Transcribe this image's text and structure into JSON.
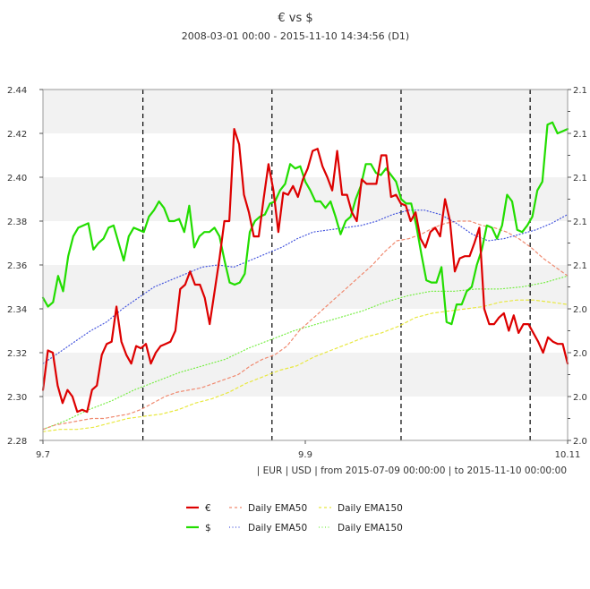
{
  "chart_data": {
    "type": "line",
    "title": "€ vs $",
    "subtitle": "2008-03-01 00:00 - 2015-11-10 14:34:56 (D1)",
    "info": "| EUR | USD | from 2015-07-09 00:00:00 | to 2015-11-10 00:00:00",
    "x_ticks": [
      "9.7",
      "9.9",
      "10.11"
    ],
    "x_range": [
      0,
      126
    ],
    "ylim_left": [
      2.28,
      2.44
    ],
    "y_ticks_left": [
      "2.28",
      "2.30",
      "2.32",
      "2.34",
      "2.36",
      "2.38",
      "2.40",
      "2.42",
      "2.44"
    ],
    "ylim_right": [
      2.0,
      2.16
    ],
    "y_ticks_right": [
      "2.0",
      "2.0",
      "2.0",
      "2.0",
      "2.1",
      "2.1",
      "2.1",
      "2.1",
      "2.1"
    ],
    "vlines_x": [
      24,
      55,
      86,
      117
    ],
    "grid": "horizontal bands",
    "legend_position": "bottom",
    "series": [
      {
        "name": "€",
        "axis": "left",
        "style": "solid",
        "color": "#dd0000",
        "values": [
          2.303,
          2.321,
          2.32,
          2.305,
          2.297,
          2.303,
          2.3,
          2.293,
          2.294,
          2.293,
          2.303,
          2.305,
          2.319,
          2.324,
          2.325,
          2.341,
          2.325,
          2.319,
          2.315,
          2.323,
          2.322,
          2.324,
          2.315,
          2.32,
          2.323,
          2.324,
          2.325,
          2.33,
          2.349,
          2.351,
          2.357,
          2.351,
          2.351,
          2.345,
          2.333,
          2.348,
          2.363,
          2.38,
          2.38,
          2.422,
          2.415,
          2.392,
          2.384,
          2.373,
          2.373,
          2.39,
          2.406,
          2.394,
          2.375,
          2.393,
          2.392,
          2.396,
          2.391,
          2.399,
          2.404,
          2.412,
          2.413,
          2.405,
          2.4,
          2.394,
          2.412,
          2.392,
          2.392,
          2.384,
          2.38,
          2.399,
          2.397,
          2.397,
          2.397,
          2.41,
          2.41,
          2.391,
          2.392,
          2.388,
          2.387,
          2.38,
          2.384,
          2.372,
          2.368,
          2.375,
          2.377,
          2.373,
          2.39,
          2.38,
          2.357,
          2.363,
          2.364,
          2.364,
          2.37,
          2.377,
          2.34,
          2.333,
          2.333,
          2.336,
          2.338,
          2.33,
          2.337,
          2.329,
          2.333,
          2.333,
          2.329,
          2.325,
          2.32,
          2.327,
          2.325,
          2.324,
          2.324,
          2.315
        ]
      },
      {
        "name": "$",
        "axis": "left",
        "style": "solid",
        "color": "#22dd00",
        "values": [
          2.345,
          2.341,
          2.343,
          2.355,
          2.348,
          2.364,
          2.373,
          2.377,
          2.378,
          2.379,
          2.367,
          2.37,
          2.372,
          2.377,
          2.378,
          2.37,
          2.362,
          2.373,
          2.377,
          2.376,
          2.375,
          2.382,
          2.385,
          2.389,
          2.386,
          2.38,
          2.38,
          2.381,
          2.375,
          2.387,
          2.368,
          2.373,
          2.375,
          2.375,
          2.377,
          2.373,
          2.362,
          2.352,
          2.351,
          2.352,
          2.356,
          2.375,
          2.38,
          2.382,
          2.383,
          2.388,
          2.389,
          2.394,
          2.397,
          2.406,
          2.404,
          2.405,
          2.398,
          2.394,
          2.389,
          2.389,
          2.386,
          2.389,
          2.382,
          2.374,
          2.38,
          2.382,
          2.39,
          2.396,
          2.406,
          2.406,
          2.402,
          2.401,
          2.404,
          2.401,
          2.398,
          2.39,
          2.388,
          2.388,
          2.378,
          2.365,
          2.353,
          2.352,
          2.352,
          2.359,
          2.334,
          2.333,
          2.342,
          2.342,
          2.348,
          2.35,
          2.36,
          2.367,
          2.378,
          2.377,
          2.372,
          2.378,
          2.392,
          2.389,
          2.376,
          2.375,
          2.378,
          2.382,
          2.394,
          2.398,
          2.424,
          2.425,
          2.42,
          2.421,
          2.422
        ]
      },
      {
        "name": "Daily EMA50",
        "axis": "left",
        "style": "dashed",
        "color": "#f08a70",
        "values": [
          2.285,
          2.287,
          2.288,
          2.289,
          2.29,
          2.29,
          2.291,
          2.292,
          2.294,
          2.297,
          2.3,
          2.302,
          2.303,
          2.304,
          2.306,
          2.308,
          2.31,
          2.314,
          2.317,
          2.319,
          2.323,
          2.33,
          2.335,
          2.34,
          2.345,
          2.35,
          2.355,
          2.36,
          2.366,
          2.371,
          2.372,
          2.374,
          2.377,
          2.379,
          2.38,
          2.38,
          2.378,
          2.377,
          2.375,
          2.372,
          2.368,
          2.363,
          2.359,
          2.355
        ]
      },
      {
        "name": "Daily EMA50",
        "axis": "left",
        "style": "dotted",
        "color": "#4455dd",
        "values": [
          2.315,
          2.32,
          2.325,
          2.33,
          2.334,
          2.34,
          2.345,
          2.35,
          2.353,
          2.356,
          2.359,
          2.36,
          2.359,
          2.362,
          2.365,
          2.368,
          2.372,
          2.375,
          2.376,
          2.377,
          2.378,
          2.38,
          2.383,
          2.385,
          2.385,
          2.383,
          2.379,
          2.374,
          2.371,
          2.372,
          2.374,
          2.376,
          2.379,
          2.383
        ]
      },
      {
        "name": "Daily EMA150",
        "axis": "left",
        "style": "dashed",
        "color": "#e8e840",
        "values": [
          2.284,
          2.285,
          2.285,
          2.286,
          2.288,
          2.29,
          2.291,
          2.292,
          2.294,
          2.297,
          2.299,
          2.302,
          2.306,
          2.309,
          2.312,
          2.314,
          2.318,
          2.321,
          2.324,
          2.327,
          2.329,
          2.332,
          2.336,
          2.338,
          2.339,
          2.34,
          2.341,
          2.343,
          2.344,
          2.344,
          2.343,
          2.342
        ]
      },
      {
        "name": "Daily EMA150",
        "axis": "left",
        "style": "dotted",
        "color": "#77ee44",
        "values": [
          2.285,
          2.289,
          2.294,
          2.298,
          2.303,
          2.307,
          2.311,
          2.314,
          2.317,
          2.322,
          2.326,
          2.33,
          2.333,
          2.336,
          2.339,
          2.343,
          2.346,
          2.348,
          2.348,
          2.349,
          2.349,
          2.35,
          2.352,
          2.355
        ]
      }
    ],
    "legend": [
      {
        "label": "€",
        "color": "#dd0000",
        "style": "solid"
      },
      {
        "label": "Daily EMA50",
        "color": "#f08a70",
        "style": "dashed"
      },
      {
        "label": "Daily EMA150",
        "color": "#e8e840",
        "style": "dashed"
      },
      {
        "label": "$",
        "color": "#22dd00",
        "style": "solid"
      },
      {
        "label": "Daily EMA50",
        "color": "#4455dd",
        "style": "dotted"
      },
      {
        "label": "Daily EMA150",
        "color": "#77ee44",
        "style": "dotted"
      }
    ]
  }
}
